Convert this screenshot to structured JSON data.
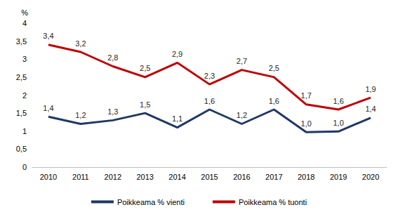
{
  "chart_data": {
    "type": "line",
    "ylabel": "%",
    "categories": [
      "2010",
      "2011",
      "2012",
      "2013",
      "2014",
      "2015",
      "2016",
      "2017",
      "2018",
      "2019",
      "2020"
    ],
    "series": [
      {
        "name": "Poikkeama % vienti",
        "color": "#1f3864",
        "values": [
          1.4,
          1.2,
          1.3,
          1.5,
          1.1,
          1.6,
          1.2,
          1.6,
          0.97,
          0.99,
          1.37
        ],
        "value_labels": [
          "1,4",
          "1,2",
          "1,3",
          "1,5",
          "1,1",
          "1,6",
          "1,2",
          "1,6",
          "1,0",
          "1,0",
          "1,4"
        ]
      },
      {
        "name": "Poikkeama % tuonti",
        "color": "#c00000",
        "values": [
          3.4,
          3.2,
          2.8,
          2.5,
          2.9,
          2.3,
          2.7,
          2.5,
          1.74,
          1.6,
          1.93
        ],
        "value_labels": [
          "3,4",
          "3,2",
          "2,8",
          "2,5",
          "2,9",
          "2,3",
          "2,7",
          "2,5",
          "1,7",
          "1,6",
          "1,9"
        ]
      }
    ],
    "ylim": [
      0,
      4
    ],
    "yticks": [
      0,
      {
        "value": 0.5,
        "label": "0,5"
      },
      1,
      {
        "value": 1.5,
        "label": "1,5"
      },
      2,
      {
        "value": 2.5,
        "label": "2,5"
      },
      3,
      {
        "value": 3.5,
        "label": "3,5"
      },
      4
    ],
    "grid": false,
    "legend": "bottom",
    "data_labels": true
  }
}
